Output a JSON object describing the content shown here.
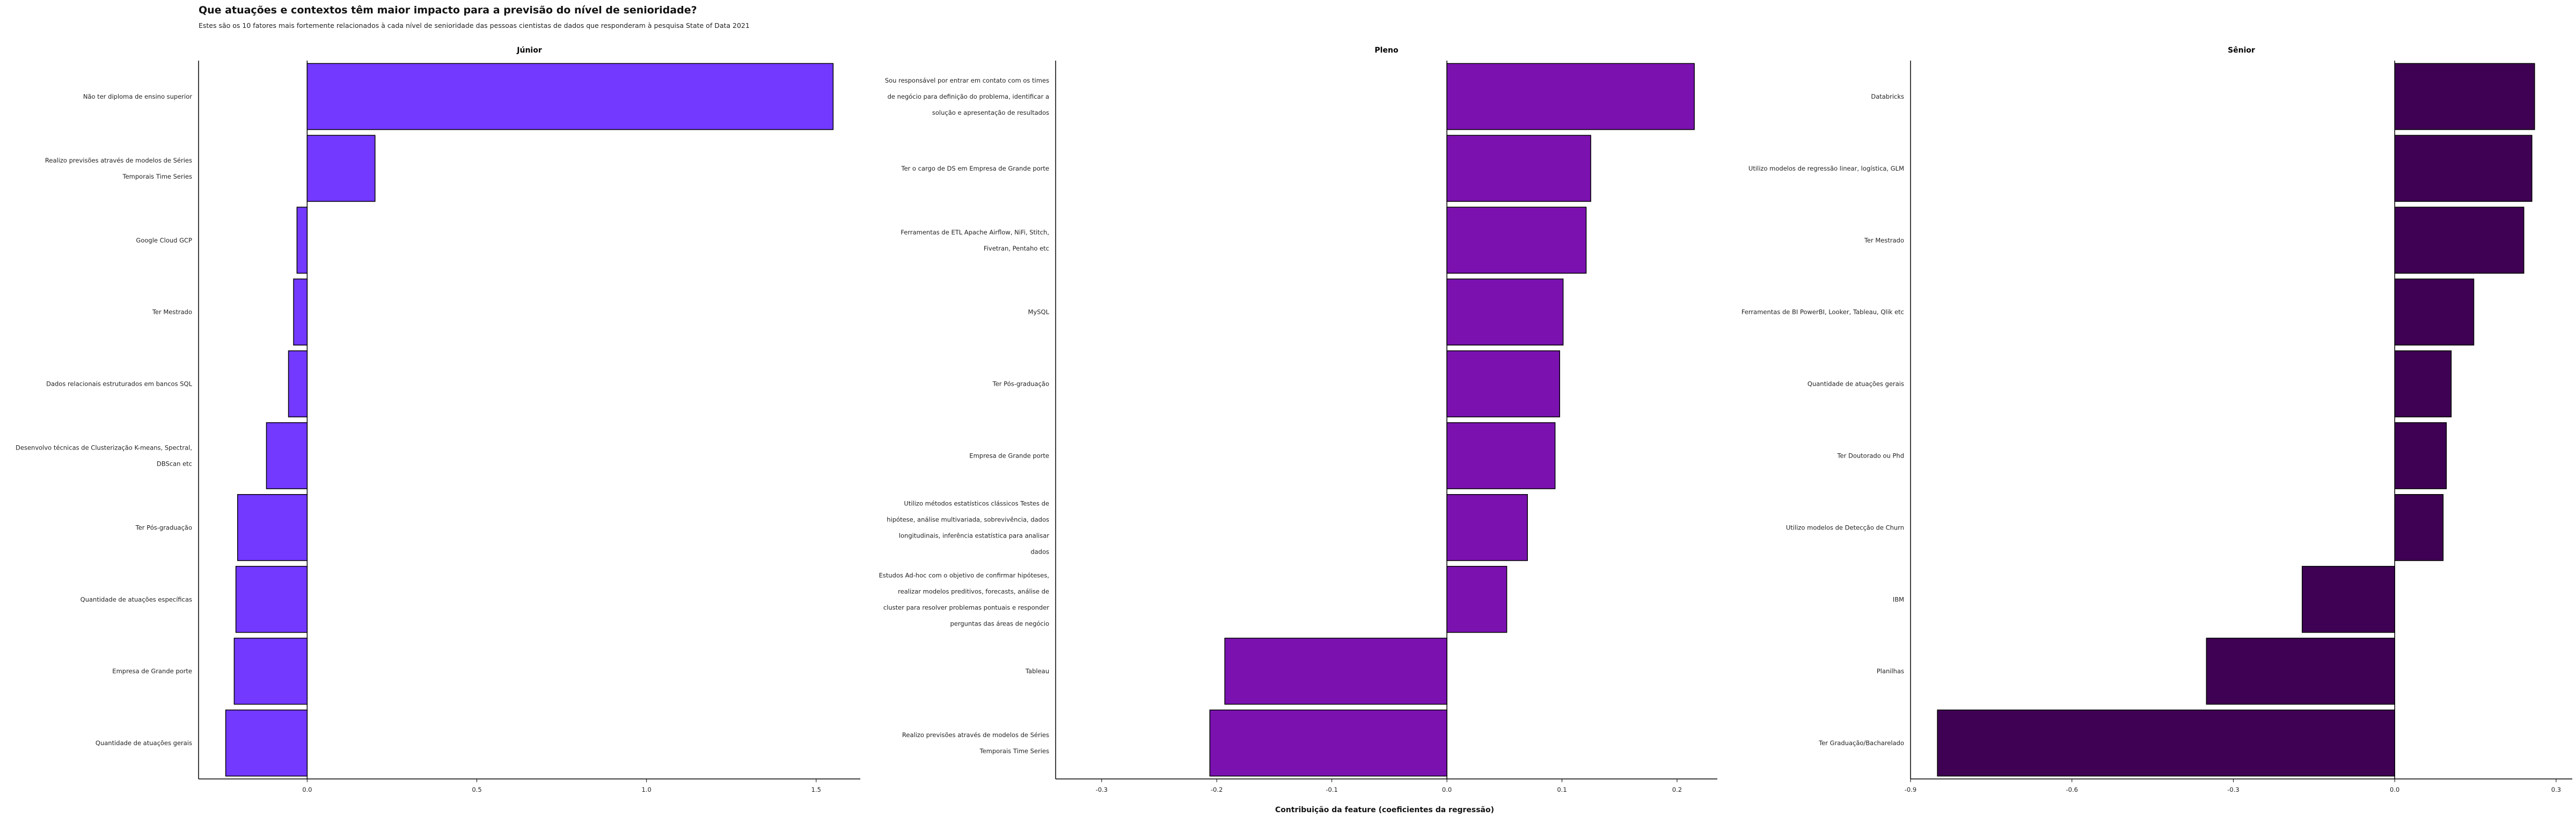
{
  "title": "Que atuações e contextos têm maior impacto para a previsão do nível de senioridade?",
  "subtitle": "Estes são os 10 fatores mais fortemente relacionados à cada nível de senioridade das pessoas cientistas de dados que responderam à pesquisa State of Data 2021",
  "xlabel": "Contribuição da feature (coeficientes da regressão)",
  "chart_data": [
    {
      "type": "bar",
      "orientation": "horizontal",
      "title": "Júnior",
      "color": "#7339ff",
      "xlim": [
        -0.32,
        1.63
      ],
      "xticks": [
        0.0,
        0.5,
        1.0,
        1.5
      ],
      "xtick_labels": [
        "0.0",
        "0.5",
        "1.0",
        "1.5"
      ],
      "categories": [
        [
          "Não ter diploma de ensino superior"
        ],
        [
          "Realizo previsões através de modelos de Séries",
          "Temporais Time Series"
        ],
        [
          "Google Cloud GCP"
        ],
        [
          "Ter Mestrado"
        ],
        [
          "Dados relacionais estruturados em bancos SQL"
        ],
        [
          "Desenvolvo técnicas de Clusterização K-means, Spectral,",
          "DBScan etc"
        ],
        [
          "Ter Pós-graduação"
        ],
        [
          "Quantidade de atuações específicas"
        ],
        [
          "Empresa de Grande porte"
        ],
        [
          "Quantidade de atuações gerais"
        ]
      ],
      "values": [
        1.55,
        0.2,
        -0.03,
        -0.04,
        -0.055,
        -0.12,
        -0.205,
        -0.21,
        -0.215,
        -0.24
      ]
    },
    {
      "type": "bar",
      "orientation": "horizontal",
      "title": "Pleno",
      "color": "#7b12b0",
      "xlim": [
        -0.34,
        0.235
      ],
      "xticks": [
        -0.3,
        -0.2,
        -0.1,
        0.0,
        0.1,
        0.2
      ],
      "xtick_labels": [
        "-0.3",
        "-0.2",
        "-0.1",
        "0.0",
        "0.1",
        "0.2"
      ],
      "categories": [
        [
          "Sou responsável por entrar em contato com os times",
          "de negócio para definição do problema, identificar a",
          "solução e apresentação de resultados"
        ],
        [
          "Ter o cargo de DS em Empresa de Grande porte"
        ],
        [
          "Ferramentas de ETL Apache Airflow, NiFi, Stitch,",
          "Fivetran, Pentaho etc"
        ],
        [
          "MySQL"
        ],
        [
          "Ter Pós-graduação"
        ],
        [
          "Empresa de Grande porte"
        ],
        [
          "Utilizo métodos estatísticos clássicos Testes de",
          "hipótese, análise multivariada, sobrevivência, dados",
          "longitudinais, inferência estatística para analisar",
          "dados"
        ],
        [
          "Estudos Ad-hoc com o objetivo de confirmar hipóteses,",
          "realizar modelos preditivos, forecasts, análise de",
          "cluster para resolver problemas pontuais e responder",
          "perguntas das áreas de negócio"
        ],
        [
          "Tableau"
        ],
        [
          "Realizo previsões através de modelos de Séries",
          "Temporais Time Series"
        ]
      ],
      "values": [
        0.215,
        0.125,
        0.121,
        0.101,
        0.098,
        0.094,
        0.07,
        0.052,
        -0.193,
        -0.206
      ]
    },
    {
      "type": "bar",
      "orientation": "horizontal",
      "title": "Sênior",
      "color": "#3e0153",
      "xlim": [
        -0.9,
        0.33
      ],
      "xticks": [
        -0.9,
        -0.6,
        -0.3,
        0.0,
        0.3
      ],
      "xtick_labels": [
        "-0.9",
        "-0.6",
        "-0.3",
        "0.0",
        "0.3"
      ],
      "categories": [
        [
          "Databricks"
        ],
        [
          "Utilizo modelos de regressão linear, logística, GLM"
        ],
        [
          "Ter Mestrado"
        ],
        [
          "Ferramentas de BI PowerBI, Looker, Tableau, Qlik etc"
        ],
        [
          "Quantidade de atuações gerais"
        ],
        [
          "Ter Doutorado ou Phd"
        ],
        [
          "Utilizo modelos de Detecção de Churn"
        ],
        [
          "IBM"
        ],
        [
          "Planilhas"
        ],
        [
          "Ter Graduação/Bacharelado"
        ]
      ],
      "values": [
        0.26,
        0.255,
        0.24,
        0.147,
        0.105,
        0.096,
        0.09,
        -0.172,
        -0.35,
        -0.85
      ]
    }
  ]
}
